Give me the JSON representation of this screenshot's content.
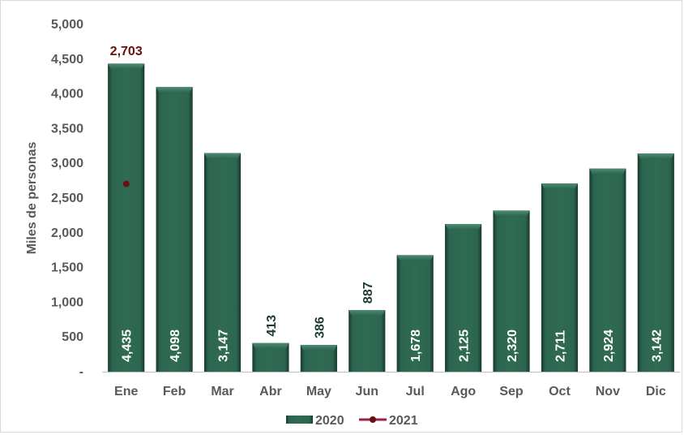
{
  "chart_data": {
    "type": "bar",
    "ylabel": "Miles de personas",
    "ylim": [
      0,
      5000
    ],
    "yticks": [
      0,
      500,
      1000,
      1500,
      2000,
      2500,
      3000,
      3500,
      4000,
      4500,
      5000
    ],
    "ytick_labels": [
      "-",
      "500",
      "1,000",
      "1,500",
      "2,000",
      "2,500",
      "3,000",
      "3,500",
      "4,000",
      "4,500",
      "5,000"
    ],
    "categories": [
      "Ene",
      "Feb",
      "Mar",
      "Abr",
      "May",
      "Jun",
      "Jul",
      "Ago",
      "Sep",
      "Oct",
      "Nov",
      "Dic"
    ],
    "series": [
      {
        "name": "2020",
        "type": "bar",
        "color": "#2a5e4a",
        "values": [
          4435,
          4098,
          3147,
          413,
          386,
          887,
          1678,
          2125,
          2320,
          2711,
          2924,
          3142
        ],
        "labels": [
          "4,435",
          "4,098",
          "3,147",
          "413",
          "386",
          "887",
          "1,678",
          "2,125",
          "2,320",
          "2,711",
          "2,924",
          "3,142"
        ]
      },
      {
        "name": "2021",
        "type": "line",
        "color": "#6b0f0f",
        "values": [
          2703,
          null,
          null,
          null,
          null,
          null,
          null,
          null,
          null,
          null,
          null,
          null
        ],
        "labels": [
          "2,703",
          "",
          "",
          "",
          "",
          "",
          "",
          "",
          "",
          "",
          "",
          ""
        ]
      }
    ],
    "legend": "bottom",
    "grid": false
  }
}
